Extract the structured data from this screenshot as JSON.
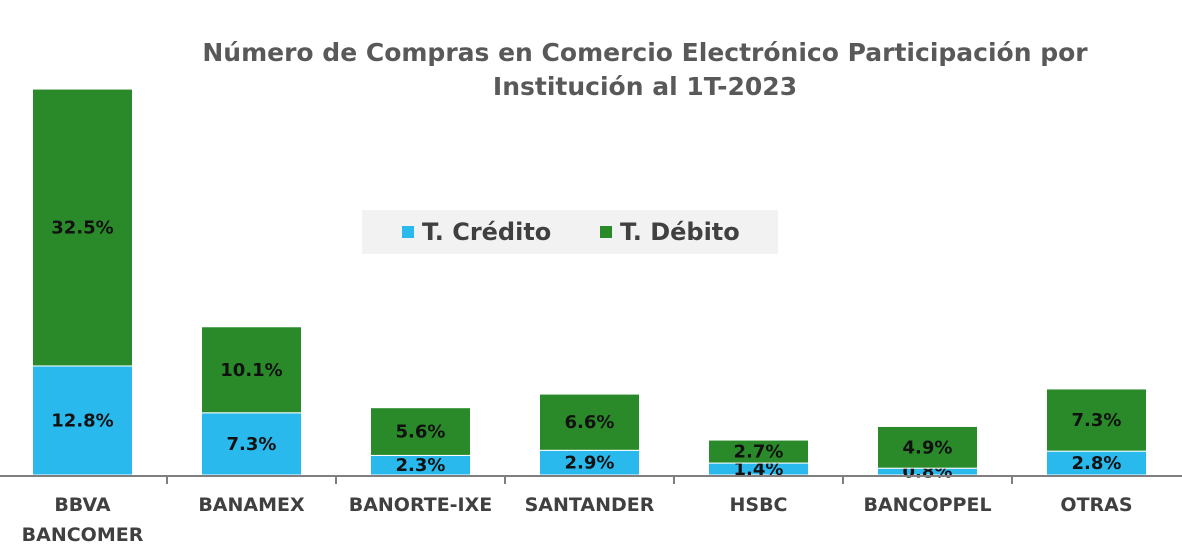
{
  "chart_data": {
    "type": "stacked_bar",
    "title": "Número de Compras en Comercio Electrónico Participación por Institución al 1T-2023",
    "categories": [
      "BBVA BANCOMER",
      "BANAMEX",
      "BANORTE-IXE",
      "SANTANDER",
      "HSBC",
      "BANCOPPEL",
      "OTRAS"
    ],
    "series": [
      {
        "name": "T. Crédito",
        "color": "#29b9ed",
        "values": [
          12.8,
          7.3,
          2.3,
          2.9,
          1.4,
          0.8,
          2.8
        ],
        "value_labels": [
          "12.8%",
          "7.3%",
          "2.3%",
          "2.9%",
          "1.4%",
          "0.8%",
          "2.8%"
        ]
      },
      {
        "name": "T. Débito",
        "color": "#2a8a2a",
        "values": [
          32.5,
          10.1,
          5.6,
          6.6,
          2.7,
          4.9,
          7.3
        ],
        "value_labels": [
          "32.5%",
          "10.1%",
          "5.6%",
          "6.6%",
          "2.7%",
          "4.9%",
          "7.3%"
        ]
      }
    ]
  }
}
